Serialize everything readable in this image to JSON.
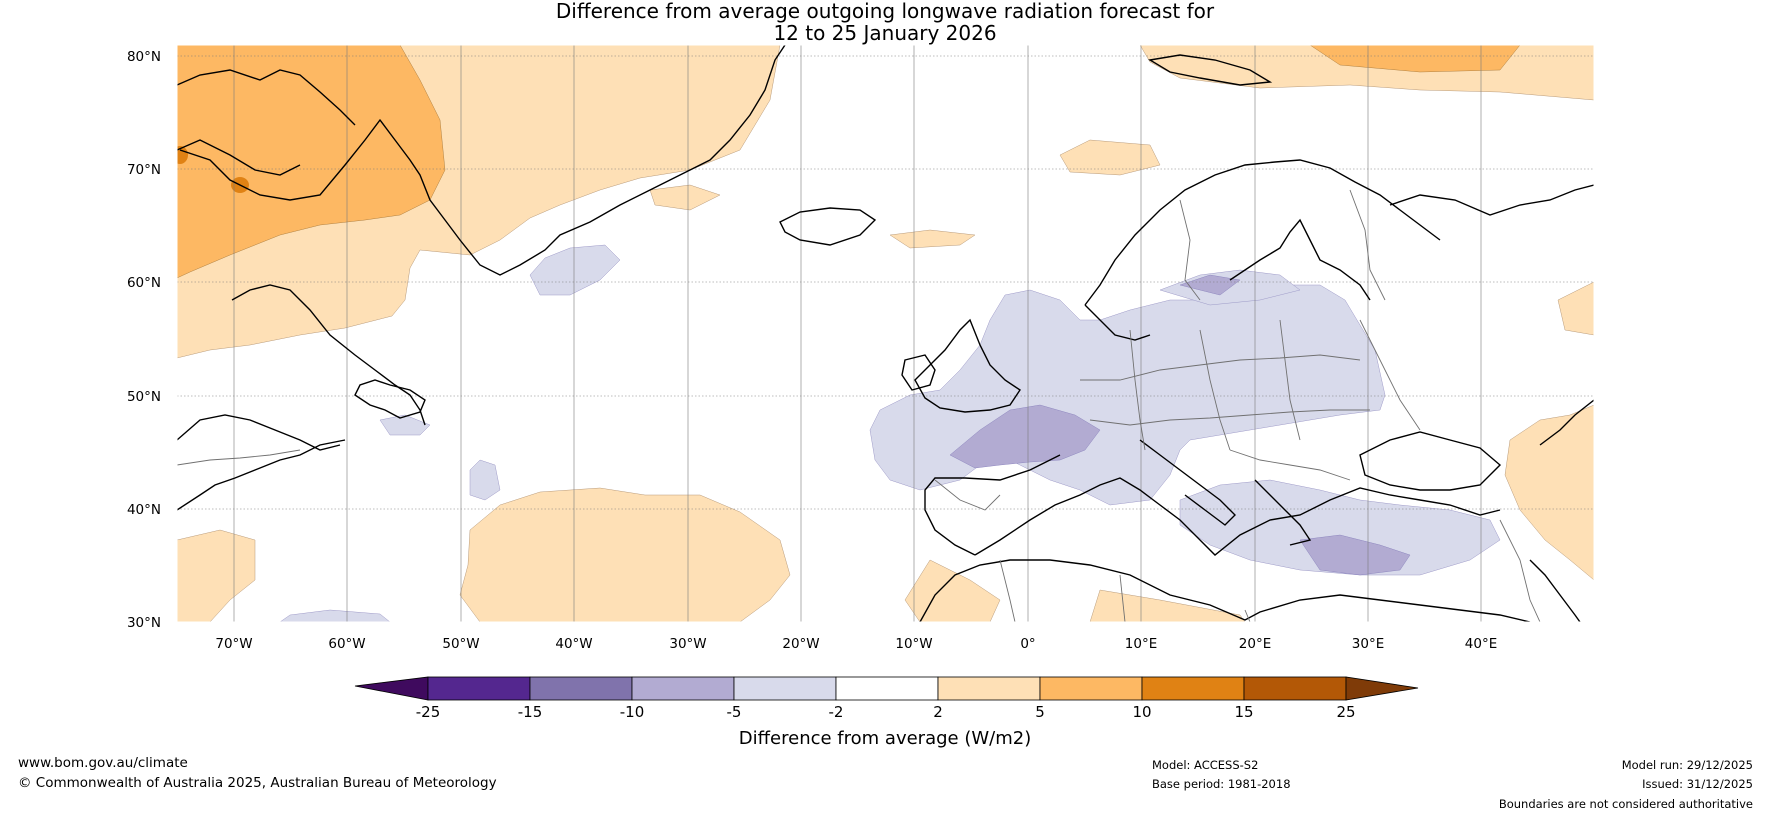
{
  "title": {
    "line1": "Difference from average outgoing longwave radiation forecast for",
    "line2": "12 to 25 January 2026"
  },
  "axes": {
    "lat_labels": [
      "80°N",
      "70°N",
      "60°N",
      "50°N",
      "40°N",
      "30°N"
    ],
    "lon_labels": [
      "70°W",
      "60°W",
      "50°W",
      "40°W",
      "30°W",
      "20°W",
      "10°W",
      "0°",
      "10°E",
      "20°E",
      "30°E",
      "40°E"
    ],
    "lon_range": [
      -75,
      50
    ],
    "lat_range": [
      30,
      81
    ]
  },
  "colorbar": {
    "title": "Difference from average (W/m2)",
    "ticks": [
      "-25",
      "-15",
      "-10",
      "-5",
      "-2",
      "2",
      "5",
      "10",
      "15",
      "25"
    ],
    "colors": [
      "#3f0a5e",
      "#54278f",
      "#8073ac",
      "#b2abd2",
      "#d8daeb",
      "#ffffff",
      "#fee0b6",
      "#fdb863",
      "#e08214",
      "#b35806",
      "#7f3b08"
    ]
  },
  "footer": {
    "url": "www.bom.gov.au/climate",
    "copyright": "© Commonwealth of Australia 2025, Australian Bureau of Meteorology",
    "model": "Model: ACCESS-S2",
    "base_period": "Base period: 1981-2018",
    "model_run": "Model run: 29/12/2025",
    "issued": "Issued: 31/12/2025",
    "boundaries": "Boundaries are not considered authoritative"
  }
}
